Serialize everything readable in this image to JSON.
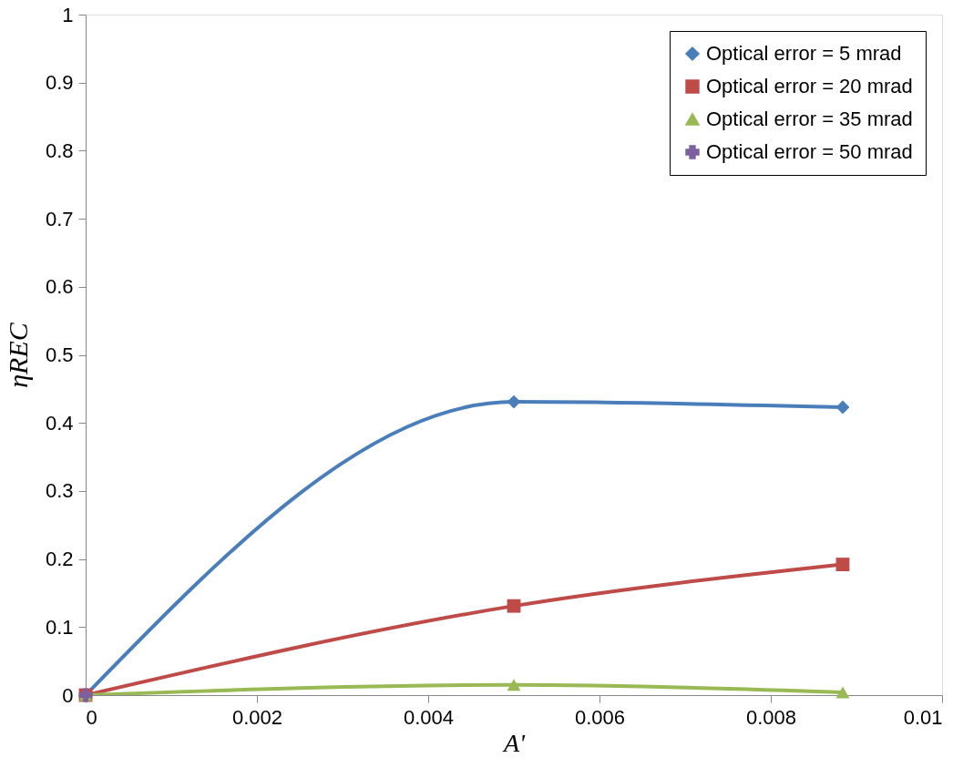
{
  "chart_data": {
    "type": "line",
    "xlabel": "A'",
    "ylabel": "ηREC",
    "x": [
      0,
      0.005,
      0.00884
    ],
    "series": [
      {
        "name": "Optical error = 5 mrad",
        "color": "#4a7ebb",
        "marker": "diamond",
        "values": [
          0,
          0.431,
          0.423
        ]
      },
      {
        "name": "Optical error = 20 mrad",
        "color": "#be4b48",
        "marker": "square",
        "values": [
          0,
          0.131,
          0.192
        ]
      },
      {
        "name": "Optical error = 35 mrad",
        "color": "#98b954",
        "marker": "triangle",
        "values": [
          0,
          0.015,
          0.004
        ]
      },
      {
        "name": "Optical error = 50 mrad",
        "color": "#7d60a0",
        "marker": "cross",
        "values": [
          0,
          null,
          null
        ]
      }
    ],
    "xlim": [
      0,
      0.01
    ],
    "xticks": [
      0,
      0.002,
      0.004,
      0.006,
      0.008,
      0.01
    ],
    "ylim": [
      0,
      1
    ],
    "yticks": [
      0,
      0.1,
      0.2,
      0.3,
      0.4,
      0.5,
      0.6,
      0.7,
      0.8,
      0.9,
      1
    ],
    "grid": false,
    "legend": "top right",
    "line_style": "solid"
  }
}
